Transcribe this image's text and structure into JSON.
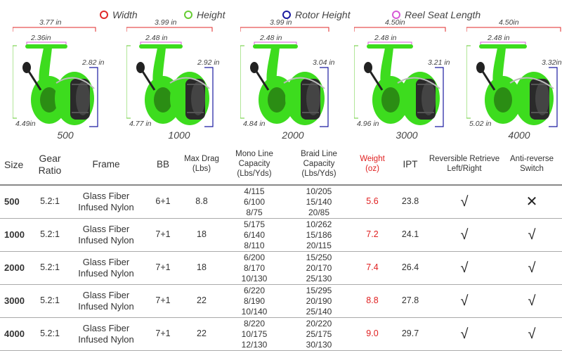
{
  "legend": [
    {
      "label": "Width",
      "color": "#e02a2a"
    },
    {
      "label": "Height",
      "color": "#66cc33"
    },
    {
      "label": "Rotor Height",
      "color": "#1a1aa0"
    },
    {
      "label": "Reel Seat Length",
      "color": "#d65ad6"
    }
  ],
  "reels": [
    {
      "size": "500",
      "width": "3.77 in",
      "seat": "2.36in",
      "rotor": "2.82 in",
      "height": "4.49in"
    },
    {
      "size": "1000",
      "width": "3.99 in",
      "seat": "2.48 in",
      "rotor": "2.92 in",
      "height": "4.77 in"
    },
    {
      "size": "2000",
      "width": "3.99 in",
      "seat": "2.48 in",
      "rotor": "3.04 in",
      "height": "4.84 in"
    },
    {
      "size": "3000",
      "width": "4.50in",
      "seat": "2.48 in",
      "rotor": "3.21 in",
      "height": "4.96 in"
    },
    {
      "size": "4000",
      "width": "4.50in",
      "seat": "2.48 in",
      "rotor": "3.32in",
      "height": "5.02 in"
    }
  ],
  "colors": {
    "reel_green": "#3ddc1e",
    "spool_dark": "#2a2a2a",
    "weight_red": "#e02020"
  },
  "table": {
    "headers": {
      "size": "Size",
      "gear": "Gear Ratio",
      "frame": "Frame",
      "bb": "BB",
      "drag": "Max Drag (Lbs)",
      "mono": "Mono Line Capacity (Lbs/Yds)",
      "braid": "Braid Line Capacity (Lbs/Yds)",
      "weight": "Weight (oz)",
      "ipt": "IPT",
      "retrieve": "Reversible Retrieve Left/Right",
      "antirev": "Anti-reverse Switch"
    },
    "rows": [
      {
        "size": "500",
        "gear": "5.2:1",
        "frame": "Glass Fiber Infused Nylon",
        "bb": "6+1",
        "drag": "8.8",
        "mono": [
          "4/115",
          "6/100",
          "8/75"
        ],
        "braid": [
          "10/205",
          "15/140",
          "20/85"
        ],
        "weight": "5.6",
        "ipt": "23.8",
        "retrieve": "√",
        "antirev": "✕"
      },
      {
        "size": "1000",
        "gear": "5.2:1",
        "frame": "Glass Fiber Infused Nylon",
        "bb": "7+1",
        "drag": "18",
        "mono": [
          "5/175",
          "6/140",
          "8/110"
        ],
        "braid": [
          "10/262",
          "15/186",
          "20/115"
        ],
        "weight": "7.2",
        "ipt": "24.1",
        "retrieve": "√",
        "antirev": "√"
      },
      {
        "size": "2000",
        "gear": "5.2:1",
        "frame": "Glass Fiber Infused Nylon",
        "bb": "7+1",
        "drag": "18",
        "mono": [
          "6/200",
          "8/170",
          "10/130"
        ],
        "braid": [
          "15/250",
          "20/170",
          "25/130"
        ],
        "weight": "7.4",
        "ipt": "26.4",
        "retrieve": "√",
        "antirev": "√"
      },
      {
        "size": "3000",
        "gear": "5.2:1",
        "frame": "Glass Fiber Infused Nylon",
        "bb": "7+1",
        "drag": "22",
        "mono": [
          "6/220",
          "8/190",
          "10/140"
        ],
        "braid": [
          "15/295",
          "20/190",
          "25/140"
        ],
        "weight": "8.8",
        "ipt": "27.8",
        "retrieve": "√",
        "antirev": "√"
      },
      {
        "size": "4000",
        "gear": "5.2:1",
        "frame": "Glass Fiber Infused Nylon",
        "bb": "7+1",
        "drag": "22",
        "mono": [
          "8/220",
          "10/175",
          "12/130"
        ],
        "braid": [
          "20/220",
          "25/175",
          "30/130"
        ],
        "weight": "9.0",
        "ipt": "29.7",
        "retrieve": "√",
        "antirev": "√"
      }
    ]
  }
}
